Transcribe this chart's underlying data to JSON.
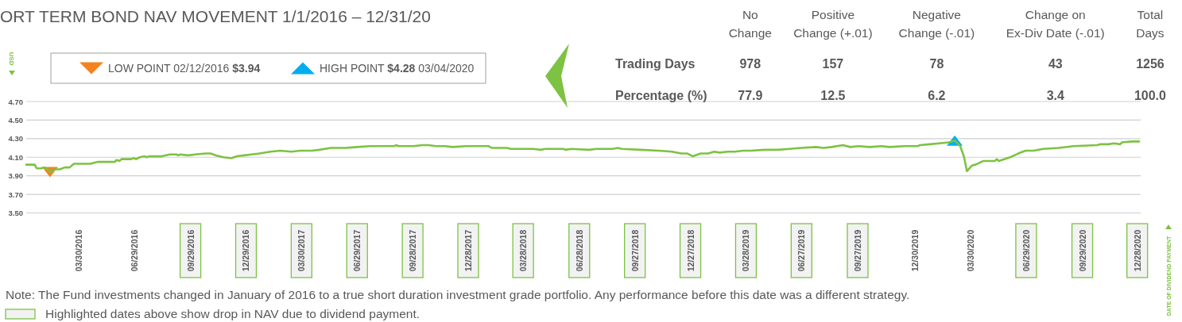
{
  "chart_data": [
    {
      "type": "line",
      "title": "ORT TERM BOND NAV MOVEMENT 1/1/2016 – 12/31/20",
      "ylabel": "USD",
      "grid": "y",
      "legend": "top left",
      "xlim": [
        "2016-01-04",
        "2020-12-31"
      ],
      "ylim": [
        3.5,
        4.7
      ],
      "yticks": [
        {
          "value": 3.5,
          "label": "3.50"
        },
        {
          "value": 3.7,
          "label": "3.70"
        },
        {
          "value": 3.9,
          "label": "3.90"
        },
        {
          "value": 4.1,
          "label": "4.10"
        },
        {
          "value": 4.3,
          "label": "4.30"
        },
        {
          "value": 4.5,
          "label": "4.50"
        },
        {
          "value": 4.7,
          "label": "4.70"
        }
      ],
      "xticks": [
        {
          "value": "2016-03-30",
          "label": "03/30/2016"
        },
        {
          "value": "2016-06-29",
          "label": "06/29/2016"
        },
        {
          "value": "2016-09-29",
          "label": "09/29/2016"
        },
        {
          "value": "2016-12-29",
          "label": "12/29/2016"
        },
        {
          "value": "2017-03-30",
          "label": "03/30/2017"
        },
        {
          "value": "2017-06-29",
          "label": "06/29/2017"
        },
        {
          "value": "2017-09-28",
          "label": "09/28/2017"
        },
        {
          "value": "2017-12-28",
          "label": "12/28/2017"
        },
        {
          "value": "2018-03-28",
          "label": "03/28/2018"
        },
        {
          "value": "2018-06-28",
          "label": "06/28/2018"
        },
        {
          "value": "2018-09-27",
          "label": "09/27/2018"
        },
        {
          "value": "2018-12-27",
          "label": "12/27/2018"
        },
        {
          "value": "2019-03-28",
          "label": "03/28/2019"
        },
        {
          "value": "2019-06-27",
          "label": "06/27/2019"
        },
        {
          "value": "2019-09-27",
          "label": "09/27/2019"
        },
        {
          "value": "2019-12-30",
          "label": "12/30/2019"
        },
        {
          "value": "2020-03-30",
          "label": "03/30/2020"
        },
        {
          "value": "2020-06-29",
          "label": "06/29/2020"
        },
        {
          "value": "2020-09-29",
          "label": "09/29/2020"
        },
        {
          "value": "2020-12-28",
          "label": "12/28/2020"
        }
      ],
      "series": [
        {
          "type": "line",
          "color": "#7dc242",
          "x": [
            "2016-01-04",
            "2016-01-18",
            "2016-01-21",
            "2016-01-29",
            "2016-02-02",
            "2016-02-07",
            "2016-02-12",
            "2016-02-20",
            "2016-02-28",
            "2016-03-07",
            "2016-03-15",
            "2016-03-22",
            "2016-04-18",
            "2016-04-24",
            "2016-05-01",
            "2016-05-28",
            "2016-05-31",
            "2016-06-05",
            "2016-06-08",
            "2016-06-24",
            "2016-06-28",
            "2016-07-02",
            "2016-07-08",
            "2016-07-16",
            "2016-07-19",
            "2016-07-24",
            "2016-08-13",
            "2016-08-19",
            "2016-08-26",
            "2016-09-06",
            "2016-09-09",
            "2016-09-12",
            "2016-09-25",
            "2016-10-07",
            "2016-10-24",
            "2016-11-01",
            "2016-11-10",
            "2016-11-22",
            "2016-12-05",
            "2016-12-14",
            "2016-12-26",
            "2017-01-07",
            "2017-01-20",
            "2017-02-07",
            "2017-02-23",
            "2017-03-13",
            "2017-03-28",
            "2017-04-16",
            "2017-04-28",
            "2017-05-17",
            "2017-06-10",
            "2017-06-29",
            "2017-07-20",
            "2017-08-29",
            "2017-09-01",
            "2017-09-05",
            "2017-09-29",
            "2017-10-14",
            "2017-10-24",
            "2017-11-05",
            "2017-11-20",
            "2017-12-03",
            "2017-12-24",
            "2018-01-30",
            "2018-02-05",
            "2018-03-02",
            "2018-03-08",
            "2018-04-14",
            "2018-04-26",
            "2018-05-03",
            "2018-06-02",
            "2018-06-05",
            "2018-06-15",
            "2018-07-14",
            "2018-07-26",
            "2018-08-21",
            "2018-08-30",
            "2018-09-06",
            "2018-10-07",
            "2018-11-05",
            "2018-11-27",
            "2018-12-12",
            "2018-12-22",
            "2018-12-31",
            "2019-01-13",
            "2019-01-25",
            "2019-02-04",
            "2019-02-13",
            "2019-02-26",
            "2019-03-10",
            "2019-03-23",
            "2019-04-05",
            "2019-04-27",
            "2019-05-19",
            "2019-06-07",
            "2019-06-26",
            "2019-07-21",
            "2019-08-02",
            "2019-08-15",
            "2019-09-03",
            "2019-09-15",
            "2019-09-28",
            "2019-10-17",
            "2019-11-05",
            "2019-11-18",
            "2019-12-13",
            "2020-01-04",
            "2020-01-07",
            "2020-01-23",
            "2020-02-08",
            "2020-02-23",
            "2020-03-04",
            "2020-03-13",
            "2020-03-19",
            "2020-03-24",
            "2020-04-01",
            "2020-04-07",
            "2020-04-20",
            "2020-05-09",
            "2020-05-12",
            "2020-05-15",
            "2020-06-03",
            "2020-06-16",
            "2020-06-28",
            "2020-07-11",
            "2020-07-27",
            "2020-08-21",
            "2020-09-15",
            "2020-10-23",
            "2020-10-29",
            "2020-11-11",
            "2020-11-20",
            "2020-11-30",
            "2020-12-03",
            "2020-12-19",
            "2020-12-31"
          ],
          "values": [
            4.02,
            4.02,
            3.98,
            3.98,
            3.99,
            3.98,
            3.94,
            3.97,
            3.97,
            3.99,
            3.99,
            4.03,
            4.03,
            4.04,
            4.05,
            4.05,
            4.07,
            4.06,
            4.08,
            4.08,
            4.09,
            4.08,
            4.1,
            4.11,
            4.1,
            4.11,
            4.11,
            4.12,
            4.13,
            4.13,
            4.12,
            4.13,
            4.12,
            4.13,
            4.14,
            4.14,
            4.12,
            4.1,
            4.09,
            4.11,
            4.12,
            4.13,
            4.14,
            4.16,
            4.17,
            4.16,
            4.17,
            4.17,
            4.18,
            4.2,
            4.2,
            4.21,
            4.22,
            4.22,
            4.23,
            4.22,
            4.22,
            4.23,
            4.23,
            4.22,
            4.22,
            4.21,
            4.22,
            4.22,
            4.2,
            4.2,
            4.19,
            4.19,
            4.18,
            4.19,
            4.19,
            4.18,
            4.19,
            4.18,
            4.19,
            4.19,
            4.2,
            4.19,
            4.18,
            4.17,
            4.16,
            4.14,
            4.14,
            4.11,
            4.14,
            4.14,
            4.16,
            4.15,
            4.16,
            4.16,
            4.17,
            4.17,
            4.18,
            4.18,
            4.19,
            4.2,
            4.21,
            4.2,
            4.21,
            4.23,
            4.21,
            4.22,
            4.21,
            4.22,
            4.21,
            4.22,
            4.22,
            4.23,
            4.24,
            4.25,
            4.26,
            4.28,
            4.22,
            4.11,
            3.95,
            4.01,
            4.02,
            4.06,
            4.06,
            4.08,
            4.06,
            4.1,
            4.14,
            4.17,
            4.17,
            4.19,
            4.2,
            4.22,
            4.23,
            4.24,
            4.24,
            4.25,
            4.24,
            4.26,
            4.27,
            4.27
          ]
        },
        {
          "type": "scatter",
          "name": "LOW POINT 02/12/2016 $3.94",
          "color": "#f58220",
          "marker": "triangle",
          "x": [
            "2016-02-12"
          ],
          "values": [
            3.94
          ]
        },
        {
          "type": "scatter",
          "name": "HIGH POINT $4.28 03/04/2020",
          "color": "#00aeef",
          "marker": "triangle",
          "x": [
            "2020-03-04"
          ],
          "values": [
            4.28
          ]
        }
      ],
      "annotations": [
        "DATE OF DIVIDEND PAYMENT",
        "Note: The Fund investments changed in January of 2016 to a true short duration investment grade portfolio. Any performance before this date was a different strategy.",
        "Highlighted dates above show drop in NAV due to dividend payment."
      ]
    },
    {
      "type": "other",
      "categories": [
        "No\nChange",
        "Positive\nChange (+.01)",
        "Negative\nChange (-.01)",
        "Change on\nEx-Div Date (-.01)",
        "Total\nDays"
      ],
      "y_categories": [
        "Trading Days",
        "Percentage (%)"
      ],
      "cell_labels": [
        [
          "978",
          "157",
          "78",
          "43",
          "1256"
        ],
        [
          "77.9",
          "12.5",
          "6.2",
          "3.4",
          "100.0"
        ]
      ]
    }
  ]
}
